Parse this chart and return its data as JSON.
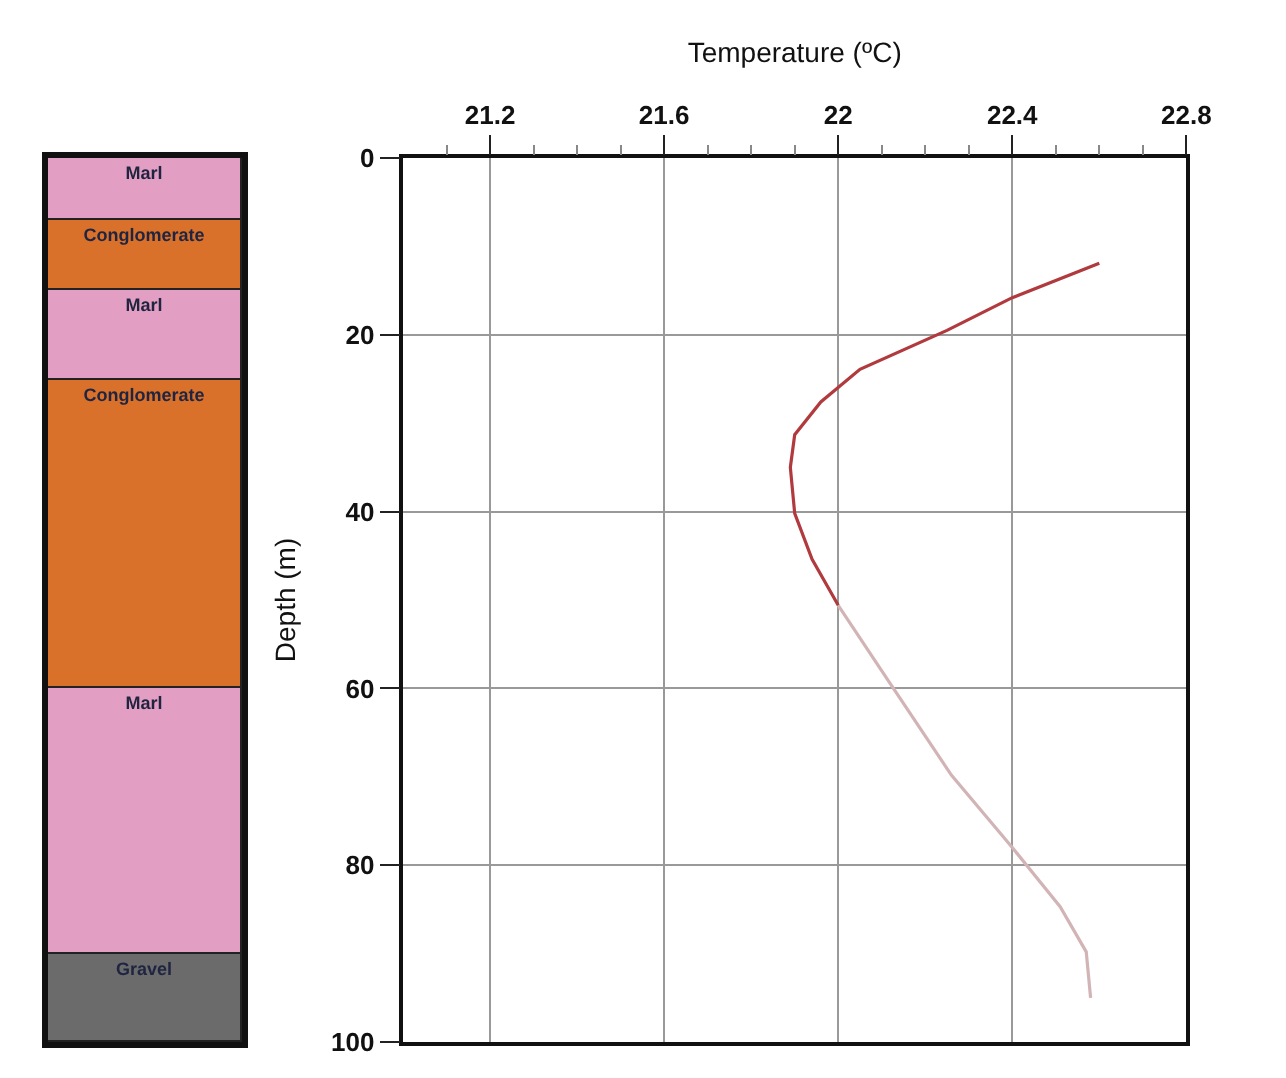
{
  "chart_data": [
    {
      "type": "bar",
      "stacked": true,
      "categories": [
        null
      ],
      "ylim": [
        100,
        0
      ],
      "tick_labels": false,
      "legend": false,
      "series": [
        {
          "name": "Marl",
          "color": "#e39fc3",
          "values": [
            7
          ]
        },
        {
          "name": "Conglomerate",
          "color": "#d9712b",
          "values": [
            8
          ]
        },
        {
          "name": "Marl",
          "color": "#e39fc3",
          "values": [
            10
          ]
        },
        {
          "name": "Conglomerate",
          "color": "#d9712b",
          "values": [
            35
          ]
        },
        {
          "name": "Marl",
          "color": "#e39fc3",
          "values": [
            30
          ]
        },
        {
          "name": "Gravel",
          "color": "#6b6b6b",
          "values": [
            10
          ]
        }
      ]
    },
    {
      "type": "line",
      "xlabel": "Temperature (ºC)",
      "ylabel": "Depth (m)",
      "grid": true,
      "legend": false,
      "marker": "none",
      "line_style": "solid",
      "xlim": [
        21.0,
        22.8
      ],
      "ylim": [
        100,
        0
      ],
      "xticks": [
        {
          "value": 21.1,
          "label": null
        },
        21.2,
        {
          "value": 21.3,
          "label": null
        },
        {
          "value": 21.4,
          "label": null
        },
        {
          "value": 21.5,
          "label": null
        },
        21.6,
        {
          "value": 21.7,
          "label": null
        },
        {
          "value": 21.8,
          "label": null
        },
        {
          "value": 21.9,
          "label": null
        },
        22,
        {
          "value": 22.1,
          "label": null
        },
        {
          "value": 22.2,
          "label": null
        },
        {
          "value": 22.3,
          "label": null
        },
        22.4,
        {
          "value": 22.5,
          "label": null
        },
        {
          "value": 22.6,
          "label": null
        },
        {
          "value": 22.7,
          "label": null
        },
        22.8
      ],
      "yticks": [
        0,
        20,
        40,
        60,
        80,
        100
      ],
      "series": [
        {
          "color": "#b03a3e",
          "x": [
            22.6,
            22.4,
            22.25,
            22.05,
            21.96,
            21.9,
            21.89,
            21.9,
            21.94,
            22.0
          ],
          "values": [
            11.9,
            15.8,
            19.5,
            23.9,
            27.6,
            31.3,
            35,
            40.2,
            45.4,
            50.6
          ]
        },
        {
          "color": "#d2b4b6",
          "x": [
            22.0,
            22.12,
            22.26,
            22.4,
            22.51,
            22.57,
            22.58
          ],
          "values": [
            50.6,
            59.5,
            69.8,
            78,
            84.7,
            89.8,
            95
          ]
        }
      ]
    }
  ]
}
